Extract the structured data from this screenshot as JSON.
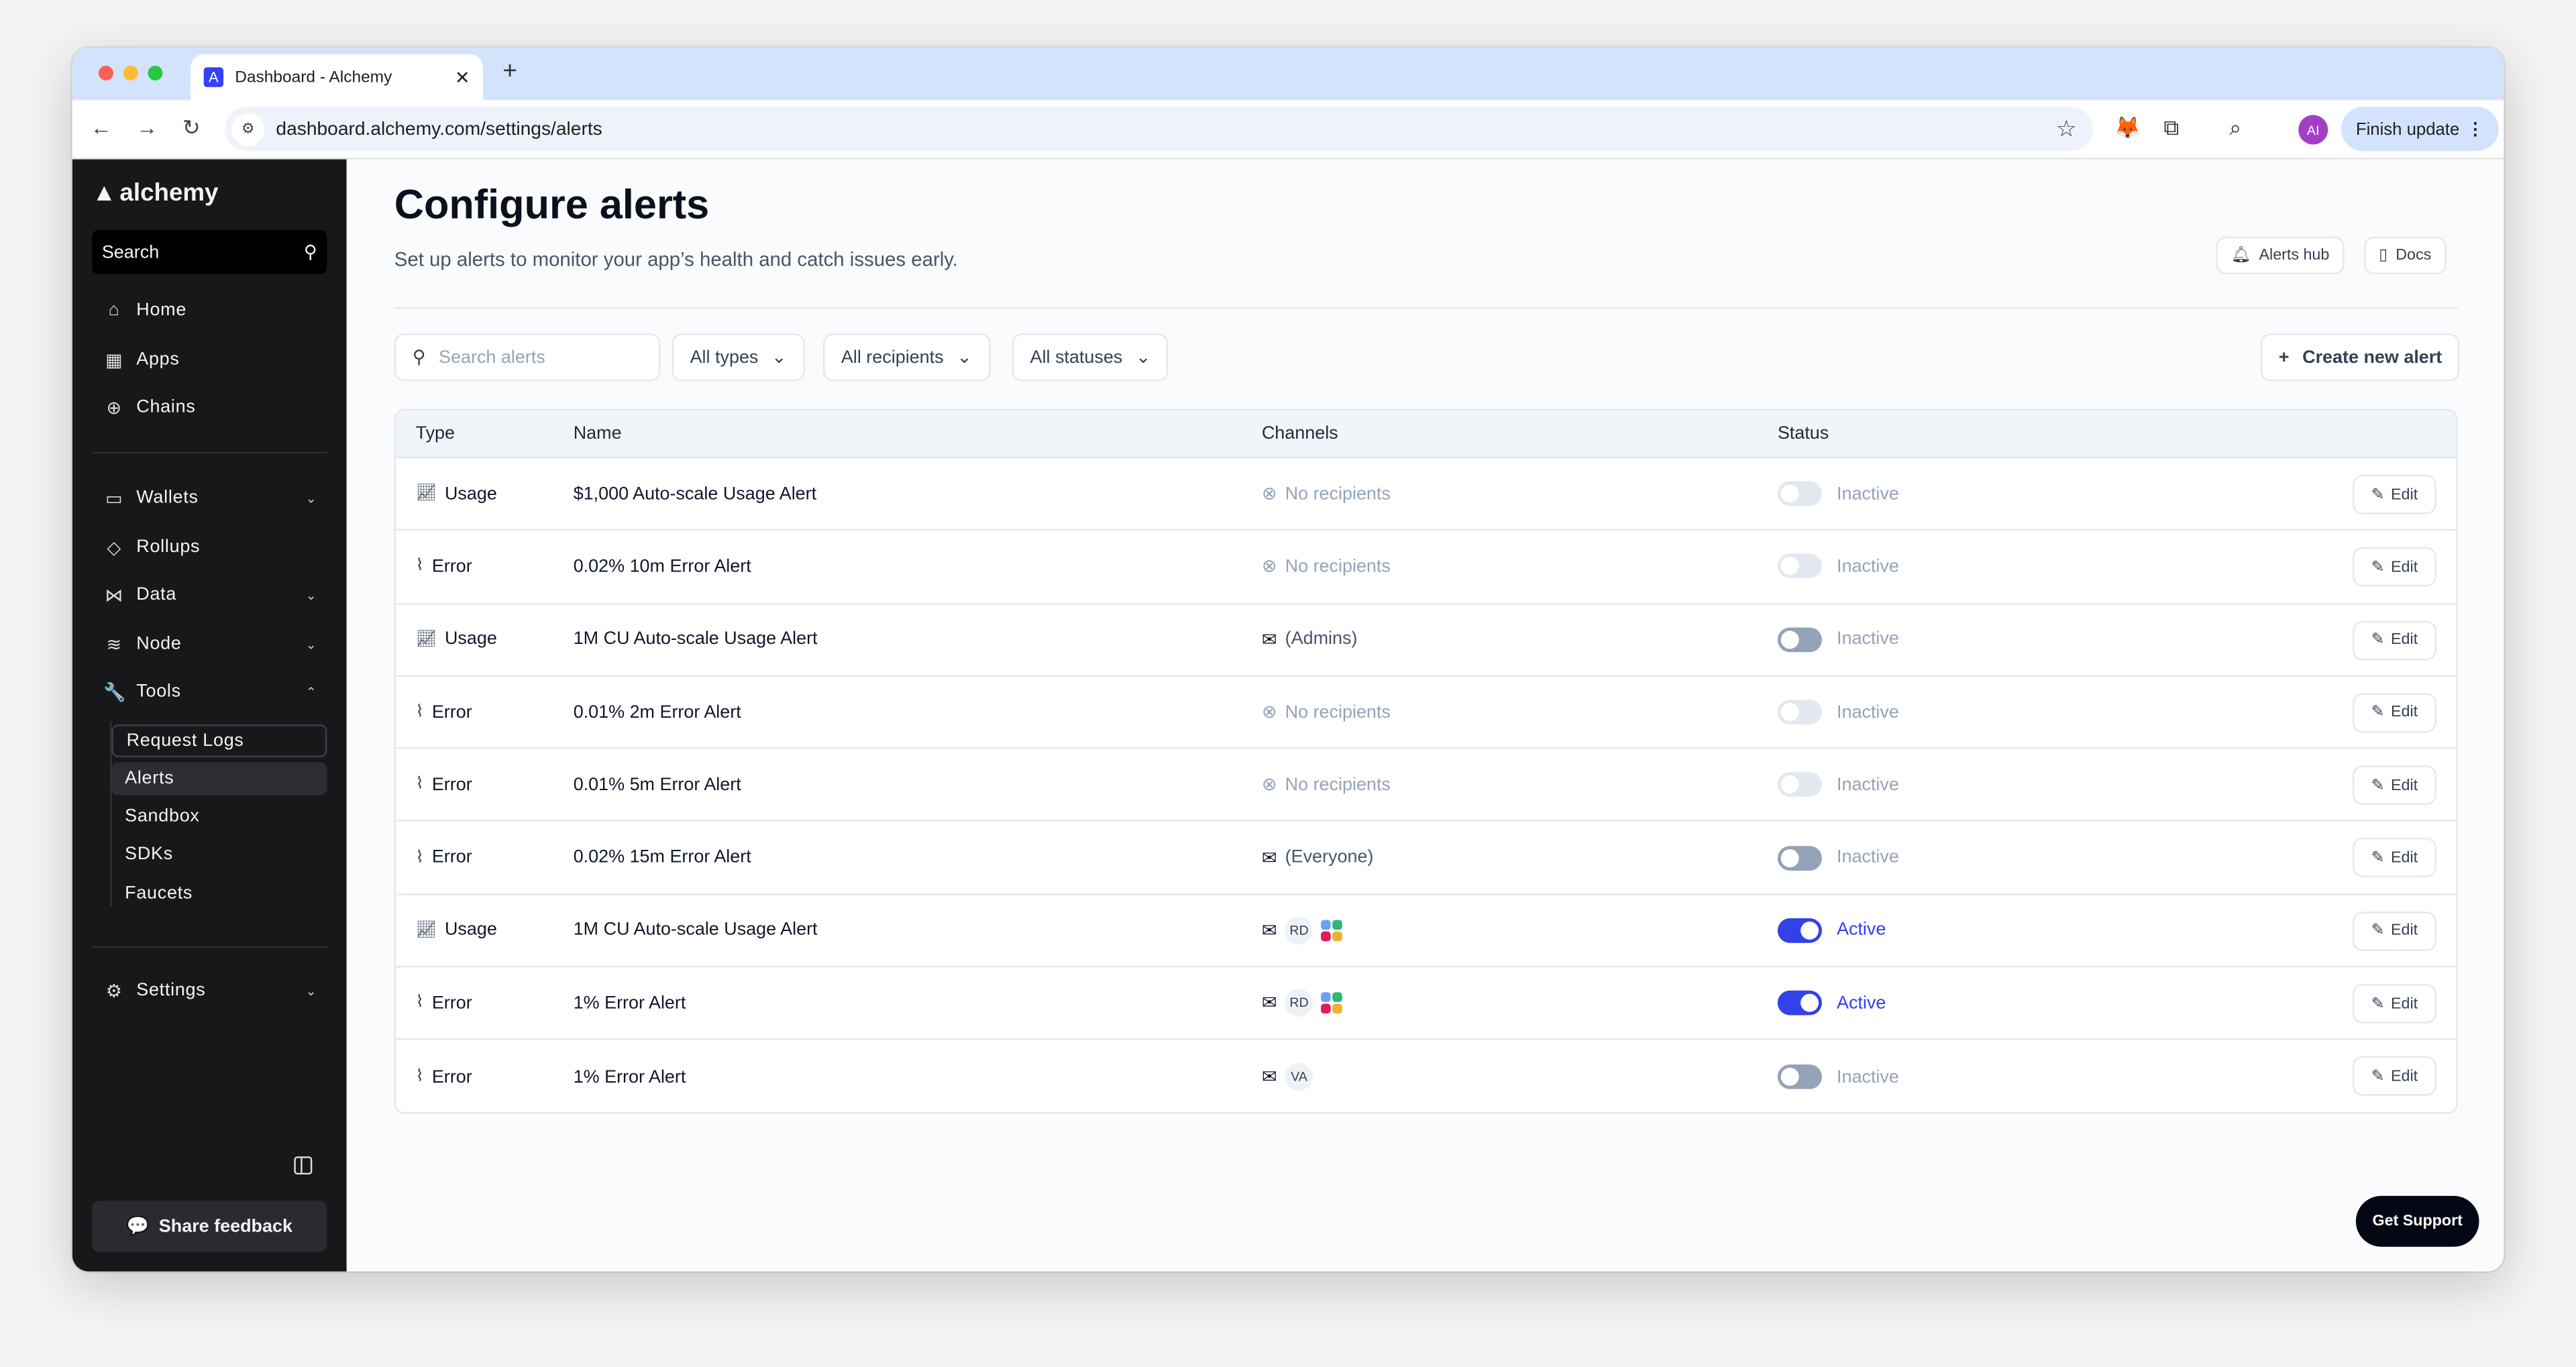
{
  "browser": {
    "tab_title": "Dashboard - Alchemy",
    "url": "dashboard.alchemy.com/settings/alerts",
    "profile_initials": "AI",
    "finish_update": "Finish update"
  },
  "sidebar": {
    "brand": "alchemy",
    "search": "Search",
    "items": [
      {
        "label": "Home",
        "icon": "home-icon"
      },
      {
        "label": "Apps",
        "icon": "grid-icon"
      },
      {
        "label": "Chains",
        "icon": "compass-icon"
      }
    ],
    "groups": [
      {
        "label": "Wallets",
        "icon": "wallet-icon",
        "chevron": "down"
      },
      {
        "label": "Rollups",
        "icon": "layers-icon"
      },
      {
        "label": "Data",
        "icon": "data-icon",
        "chevron": "down"
      },
      {
        "label": "Node",
        "icon": "stack-icon",
        "chevron": "down"
      },
      {
        "label": "Tools",
        "icon": "wrench-icon",
        "chevron": "up"
      }
    ],
    "tools_sub": [
      "Request Logs",
      "Alerts",
      "Sandbox",
      "SDKs",
      "Faucets"
    ],
    "active_sub": "Alerts",
    "settings": "Settings",
    "feedback": "Share feedback"
  },
  "page": {
    "title": "Configure alerts",
    "subtitle": "Set up alerts to monitor your app’s health and catch issues early.",
    "alerts_hub": "Alerts hub",
    "docs": "Docs",
    "create": "Create new alert",
    "get_support": "Get Support"
  },
  "filters": {
    "search_placeholder": "Search alerts",
    "types": "All types",
    "recipients": "All recipients",
    "statuses": "All statuses"
  },
  "table": {
    "headers": {
      "type": "Type",
      "name": "Name",
      "channels": "Channels",
      "status": "Status"
    },
    "edit_label": "Edit",
    "rows": [
      {
        "type": "Usage",
        "name": "$1,000 Auto-scale Usage Alert",
        "channel": "No recipients",
        "channel_kind": "none",
        "status": "Inactive",
        "enabled": false
      },
      {
        "type": "Error",
        "name": "0.02% 10m Error Alert",
        "channel": "No recipients",
        "channel_kind": "none",
        "status": "Inactive",
        "enabled": false
      },
      {
        "type": "Usage",
        "name": "1M CU Auto-scale Usage Alert",
        "channel": "(Admins)",
        "channel_kind": "email",
        "status": "Inactive",
        "enabled": true
      },
      {
        "type": "Error",
        "name": "0.01% 2m Error Alert",
        "channel": "No recipients",
        "channel_kind": "none",
        "status": "Inactive",
        "enabled": false
      },
      {
        "type": "Error",
        "name": "0.01% 5m Error Alert",
        "channel": "No recipients",
        "channel_kind": "none",
        "status": "Inactive",
        "enabled": false
      },
      {
        "type": "Error",
        "name": "0.02% 15m Error Alert",
        "channel": "(Everyone)",
        "channel_kind": "email",
        "status": "Inactive",
        "enabled": true
      },
      {
        "type": "Usage",
        "name": "1M CU Auto-scale Usage Alert",
        "channel": "RD",
        "channel_kind": "email-avatar",
        "slack": true,
        "status": "Active",
        "enabled": true
      },
      {
        "type": "Error",
        "name": "1% Error Alert",
        "channel": "RD",
        "channel_kind": "email-avatar",
        "slack": true,
        "status": "Active",
        "enabled": true
      },
      {
        "type": "Error",
        "name": "1% Error Alert",
        "channel": "VA",
        "channel_kind": "email-avatar",
        "slack": false,
        "status": "Inactive",
        "enabled": true
      }
    ]
  },
  "colors": {
    "accent": "#3341e8",
    "toggle_off": "#94a3b8",
    "toggle_disabled": "#e2e8f0",
    "sidebar": "#18181b"
  }
}
